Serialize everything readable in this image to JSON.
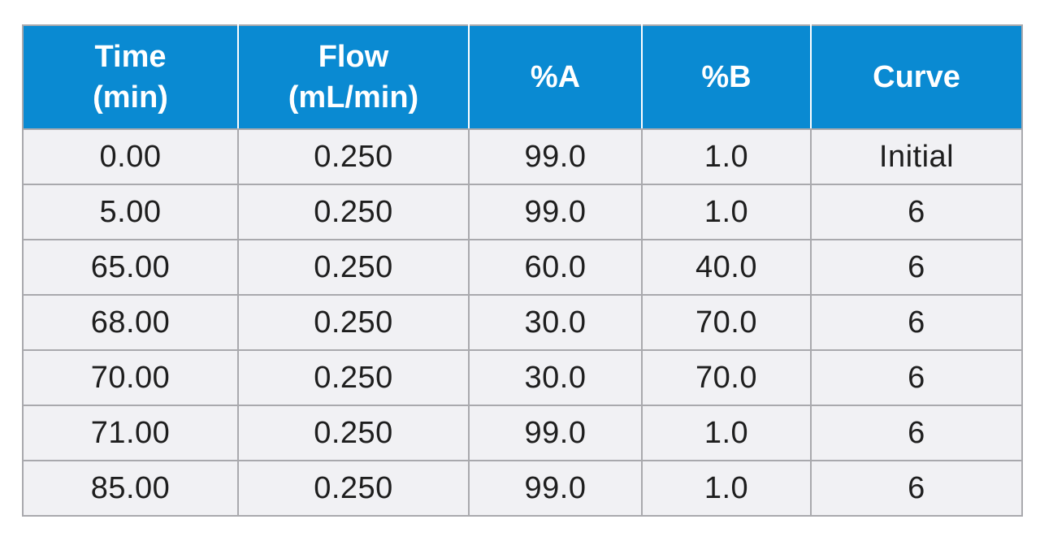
{
  "table": {
    "headers": [
      {
        "line1": "Time",
        "line2": "(min)"
      },
      {
        "line1": "Flow",
        "line2": "(mL/min)"
      },
      {
        "line1": "%A",
        "line2": ""
      },
      {
        "line1": "%B",
        "line2": ""
      },
      {
        "line1": "Curve",
        "line2": ""
      }
    ],
    "rows": [
      [
        "0.00",
        "0.250",
        "99.0",
        "1.0",
        "Initial"
      ],
      [
        "5.00",
        "0.250",
        "99.0",
        "1.0",
        "6"
      ],
      [
        "65.00",
        "0.250",
        "60.0",
        "40.0",
        "6"
      ],
      [
        "68.00",
        "0.250",
        "30.0",
        "70.0",
        "6"
      ],
      [
        "70.00",
        "0.250",
        "30.0",
        "70.0",
        "6"
      ],
      [
        "71.00",
        "0.250",
        "99.0",
        "1.0",
        "6"
      ],
      [
        "85.00",
        "0.250",
        "99.0",
        "1.0",
        "6"
      ]
    ]
  },
  "colors": {
    "header_bg": "#0a8ad2",
    "header_text": "#ffffff",
    "row_bg": "#f1f1f4",
    "border": "#a9a9ad"
  }
}
